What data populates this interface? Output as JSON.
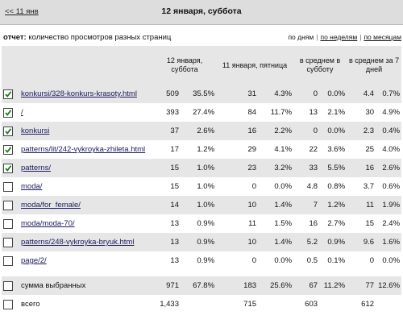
{
  "nav": {
    "prev": "<< 11 янв",
    "title": "12 января, суббота"
  },
  "report": {
    "label": "отчет:",
    "text": "количество просмотров разных страниц",
    "periods": [
      "по дням",
      "по неделям",
      "по месяцам"
    ]
  },
  "table": {
    "headers": [
      "12 января, суббота",
      "11 января, пятница",
      "в среднем в субботу",
      "в среднем за 7 дней"
    ],
    "rows": [
      {
        "checked": true,
        "page": "konkursi/328-konkurs-krasoty.html",
        "cells": [
          "509",
          "35.5%",
          "31",
          "4.3%",
          "0",
          "0.0%",
          "4.4",
          "0.7%"
        ]
      },
      {
        "checked": true,
        "page": "/",
        "cells": [
          "393",
          "27.4%",
          "84",
          "11.7%",
          "13",
          "2.1%",
          "30",
          "4.9%"
        ]
      },
      {
        "checked": true,
        "page": "konkursi",
        "cells": [
          "37",
          "2.6%",
          "16",
          "2.2%",
          "0",
          "0.0%",
          "2.3",
          "0.4%"
        ]
      },
      {
        "checked": true,
        "page": "patterns/lit/242-vykroyka-zhileta.html",
        "cells": [
          "17",
          "1.2%",
          "29",
          "4.1%",
          "22",
          "3.6%",
          "25",
          "4.0%"
        ]
      },
      {
        "checked": true,
        "page": "patterns/",
        "cells": [
          "15",
          "1.0%",
          "23",
          "3.2%",
          "33",
          "5.5%",
          "16",
          "2.6%"
        ]
      },
      {
        "checked": false,
        "page": "moda/",
        "cells": [
          "15",
          "1.0%",
          "0",
          "0.0%",
          "4.8",
          "0.8%",
          "3.7",
          "0.6%"
        ]
      },
      {
        "checked": false,
        "page": "moda/for_female/",
        "cells": [
          "14",
          "1.0%",
          "10",
          "1.4%",
          "7",
          "1.2%",
          "11",
          "1.9%"
        ]
      },
      {
        "checked": false,
        "page": "moda/moda-70/",
        "cells": [
          "13",
          "0.9%",
          "11",
          "1.5%",
          "16",
          "2.7%",
          "15",
          "2.4%"
        ]
      },
      {
        "checked": false,
        "page": "patterns/248-vykroyka-bryuk.html",
        "cells": [
          "13",
          "0.9%",
          "10",
          "1.4%",
          "5.2",
          "0.9%",
          "9.6",
          "1.6%"
        ]
      },
      {
        "checked": false,
        "page": "page/2/",
        "cells": [
          "13",
          "0.9%",
          "0",
          "0.0%",
          "0.5",
          "0.1%",
          "0",
          "0.0%"
        ]
      }
    ],
    "summary": {
      "checked": false,
      "label": "сумма выбранных",
      "cells": [
        "971",
        "67.8%",
        "183",
        "25.6%",
        "67",
        "11.2%",
        "77",
        "12.6%"
      ]
    },
    "total": {
      "checked": false,
      "label": "всего",
      "cells": [
        "1,433",
        "715",
        "603",
        "612"
      ]
    }
  }
}
